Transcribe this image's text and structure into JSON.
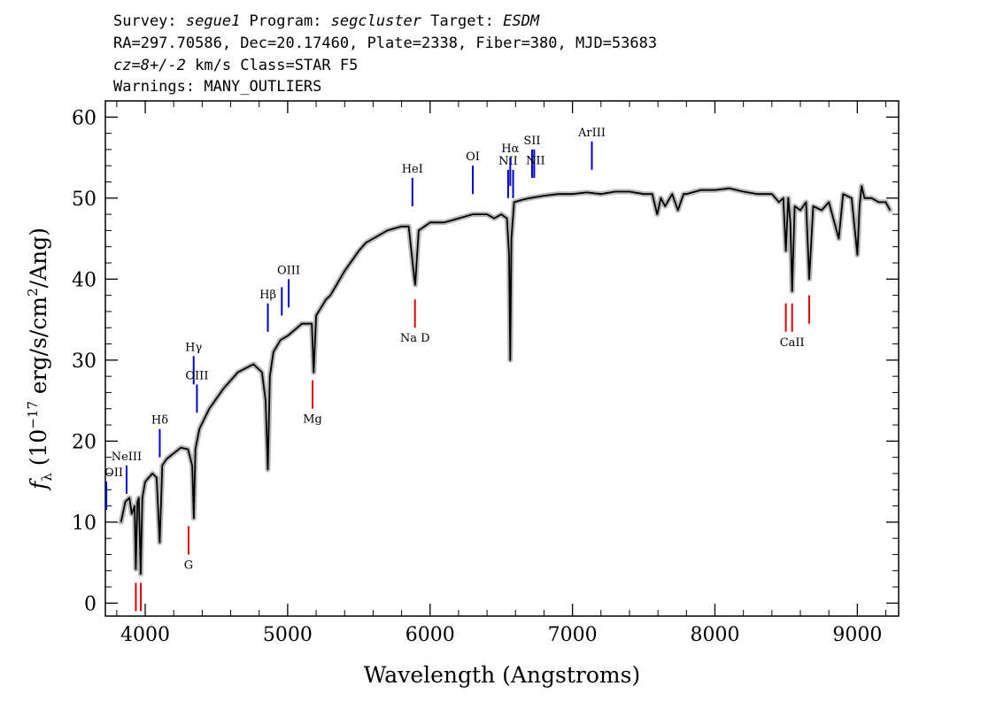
{
  "header": {
    "line1": {
      "survey_label": "Survey: ",
      "survey": "segue1",
      "program_label": " Program: ",
      "program": "segcluster",
      "target_label": " Target: ",
      "target": "ESDM"
    },
    "line2": "RA=297.70586, Dec=20.17460, Plate=2338, Fiber=380, MJD=53683",
    "line3": {
      "redshift": "cz=8+/-2",
      "rest": " km/s Class=STAR F5"
    },
    "line4": "Warnings: MANY_OUTLIERS"
  },
  "chart_data": {
    "type": "line",
    "title": "",
    "xlabel": "Wavelength (Angstroms)",
    "ylabel": "f_λ (10^-17 erg/s/cm^2/Ang)",
    "ylabel_parts": {
      "f": "f",
      "lambda": "λ",
      "open": " (10",
      "exp1": "−17",
      "mid": " erg/s/cm",
      "exp2": "2",
      "close": "/Ang)"
    },
    "xlim": [
      3720,
      9290
    ],
    "ylim": [
      -1.6,
      62
    ],
    "x_ticks": [
      4000,
      5000,
      6000,
      7000,
      8000,
      9000
    ],
    "y_ticks": [
      0,
      10,
      20,
      30,
      40,
      50,
      60
    ],
    "tick_labels_x": [
      "4000",
      "5000",
      "6000",
      "7000",
      "8000",
      "9000"
    ],
    "tick_labels_y": [
      "0",
      "10",
      "20",
      "30",
      "40",
      "50",
      "60"
    ],
    "grid": false,
    "series": [
      {
        "color": "#000000",
        "x": [
          3830,
          3860,
          3889,
          3905,
          3925,
          3934,
          3945,
          3955,
          3968,
          3980,
          4000,
          4050,
          4080,
          4102,
          4120,
          4150,
          4200,
          4250,
          4300,
          4330,
          4341,
          4352,
          4380,
          4450,
          4550,
          4650,
          4760,
          4820,
          4845,
          4861,
          4875,
          4900,
          4950,
          5000,
          5100,
          5170,
          5183,
          5200,
          5270,
          5300,
          5400,
          5500,
          5550,
          5600,
          5700,
          5800,
          5850,
          5890,
          5896,
          5920,
          6000,
          6100,
          6200,
          6300,
          6400,
          6450,
          6500,
          6540,
          6555,
          6563,
          6571,
          6590,
          6650,
          6700,
          6800,
          6900,
          7000,
          7100,
          7200,
          7300,
          7400,
          7500,
          7560,
          7595,
          7620,
          7650,
          7700,
          7740,
          7780,
          7800,
          7900,
          8000,
          8100,
          8200,
          8300,
          8400,
          8450,
          8480,
          8498,
          8515,
          8530,
          8542,
          8560,
          8600,
          8640,
          8662,
          8690,
          8750,
          8800,
          8870,
          8900,
          8960,
          9000,
          9015,
          9030,
          9050,
          9100,
          9150,
          9200,
          9230
        ],
        "y": [
          10,
          12.5,
          13,
          11,
          12,
          4.2,
          12.5,
          13,
          3.6,
          13,
          15,
          16,
          15.5,
          7.5,
          17,
          17.8,
          18.5,
          19.2,
          19,
          17,
          10.5,
          19,
          21.5,
          24,
          26.5,
          28.5,
          29.5,
          28.5,
          25,
          16.5,
          28,
          31,
          32.5,
          33,
          34.5,
          34.5,
          28.5,
          35.5,
          37.5,
          38,
          41,
          43.5,
          44.5,
          45,
          46,
          46.5,
          46.5,
          40,
          39.3,
          46,
          47,
          47,
          47.5,
          48,
          48,
          47.5,
          48,
          47.5,
          43,
          30,
          45,
          49.5,
          49.8,
          50,
          50.3,
          50.5,
          50.5,
          50.7,
          50.5,
          50.8,
          50.8,
          50.5,
          50.5,
          48,
          50,
          49,
          50.5,
          48.5,
          50.5,
          50.5,
          51,
          51,
          51.2,
          50.8,
          50.5,
          50.5,
          49.5,
          50,
          43.5,
          50,
          47,
          38.5,
          49,
          48.5,
          49.5,
          40,
          49,
          48.5,
          49.5,
          45,
          50.5,
          50,
          43,
          49,
          51.5,
          50,
          50,
          49.5,
          49.5,
          48.5
        ]
      }
    ],
    "emission_lines": [
      {
        "name": "OII",
        "wave": 3727,
        "y_bottom": 11.5,
        "y_top": 15,
        "label": "OII"
      },
      {
        "name": "NeIII",
        "wave": 3869,
        "y_bottom": 13.5,
        "y_top": 17,
        "label": "NeIII"
      },
      {
        "name": "Hdelta",
        "wave": 4102,
        "y_bottom": 18,
        "y_top": 21.5,
        "label": "Hδ"
      },
      {
        "name": "Hgamma",
        "wave": 4340,
        "y_bottom": 27,
        "y_top": 30.5,
        "label": "Hγ"
      },
      {
        "name": "OIII_4363",
        "wave": 4363,
        "y_bottom": 23.5,
        "y_top": 27,
        "label": "OIII"
      },
      {
        "name": "Hbeta",
        "wave": 4861,
        "y_bottom": 33.5,
        "y_top": 37,
        "label": "Hβ"
      },
      {
        "name": "OIII_4959",
        "wave": 4959,
        "y_bottom": 35.5,
        "y_top": 39,
        "label": ""
      },
      {
        "name": "OIII_5007",
        "wave": 5007,
        "y_bottom": 36.5,
        "y_top": 40,
        "label": "OIII"
      },
      {
        "name": "HeI",
        "wave": 5876,
        "y_bottom": 49,
        "y_top": 52.5,
        "label": "HeI"
      },
      {
        "name": "OI",
        "wave": 6300,
        "y_bottom": 50.5,
        "y_top": 54,
        "label": "OI"
      },
      {
        "name": "NII_6548",
        "wave": 6548,
        "y_bottom": 50,
        "y_top": 53.5,
        "label": "NII"
      },
      {
        "name": "Halpha",
        "wave": 6563,
        "y_bottom": 51.5,
        "y_top": 55,
        "label": "Hα"
      },
      {
        "name": "NII_6583",
        "wave": 6583,
        "y_bottom": 50,
        "y_top": 53.5,
        "label": ""
      },
      {
        "name": "SII_6716",
        "wave": 6716,
        "y_bottom": 52.5,
        "y_top": 56,
        "label": "SII"
      },
      {
        "name": "SII_6731",
        "wave": 6731,
        "y_bottom": 52.5,
        "y_top": 56,
        "label": ""
      },
      {
        "name": "NII_label",
        "wave": 6740,
        "y_bottom": null,
        "y_top": null,
        "label": "NII"
      },
      {
        "name": "ArIII",
        "wave": 7136,
        "y_bottom": 53.5,
        "y_top": 57,
        "label": "ArIII"
      }
    ],
    "absorption_lines": [
      {
        "name": "CaK",
        "wave": 3934,
        "y_bottom": -1,
        "y_top": 2.5,
        "label": ""
      },
      {
        "name": "CaH",
        "wave": 3969,
        "y_bottom": -1,
        "y_top": 2.5,
        "label": ""
      },
      {
        "name": "G",
        "wave": 4304,
        "y_bottom": 6,
        "y_top": 9.5,
        "label": "G"
      },
      {
        "name": "Mg",
        "wave": 5175,
        "y_bottom": 24,
        "y_top": 27.5,
        "label": "Mg"
      },
      {
        "name": "NaD",
        "wave": 5894,
        "y_bottom": 34,
        "y_top": 37.5,
        "label": "Na D"
      },
      {
        "name": "CaII_8498",
        "wave": 8498,
        "y_bottom": 33.5,
        "y_top": 37,
        "label": ""
      },
      {
        "name": "CaII_8542",
        "wave": 8542,
        "y_bottom": 33.5,
        "y_top": 37,
        "label": "CaII"
      },
      {
        "name": "CaII_8662",
        "wave": 8662,
        "y_bottom": 34.5,
        "y_top": 38,
        "label": ""
      }
    ],
    "colors": {
      "spectrum": "#000000",
      "error_band": "#b8b8b8",
      "emission": "#0000cc",
      "absorption": "#dd0000"
    }
  }
}
